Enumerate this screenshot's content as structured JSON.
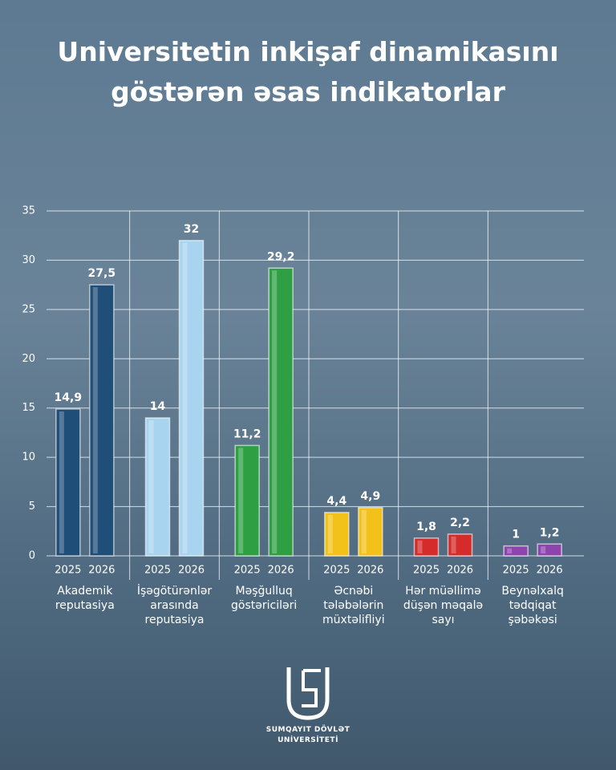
{
  "chart_data": {
    "type": "bar",
    "title": "Universitetin inkişaf dinamikasını göstərən əsas indikatorlar",
    "categories": [
      "Akademik reputasiya",
      "İşəgötürənlər arasında reputasiya",
      "Məşğulluq göstəriciləri",
      "Əcnəbi tələbələrin müxtəlifliyi",
      "Hər müəllimə düşən məqalə sayı",
      "Beynəlxalq tədqiqat şəbəkəsi"
    ],
    "colors": [
      "#1f4e79",
      "#a9d4ef",
      "#2ea043",
      "#f2c21b",
      "#d62b2b",
      "#8e44ad"
    ],
    "series": [
      {
        "name": "2025",
        "values": [
          14.9,
          14,
          11.2,
          4.4,
          1.8,
          1
        ],
        "value_labels": [
          "14,9",
          "14",
          "11,2",
          "4,4",
          "1,8",
          "1"
        ]
      },
      {
        "name": "2026",
        "values": [
          27.5,
          32,
          29.2,
          4.9,
          2.2,
          1.2
        ],
        "value_labels": [
          "27,5",
          "32",
          "29,2",
          "4,9",
          "2,2",
          "1,2"
        ]
      }
    ],
    "ylim": [
      0,
      35
    ],
    "yticks": [
      0,
      5,
      10,
      15,
      20,
      25,
      30,
      35
    ],
    "grid": true
  },
  "logo": {
    "line1": "SUMQAYIT DÖVLƏT",
    "line2": "UNİVERSİTETİ"
  }
}
